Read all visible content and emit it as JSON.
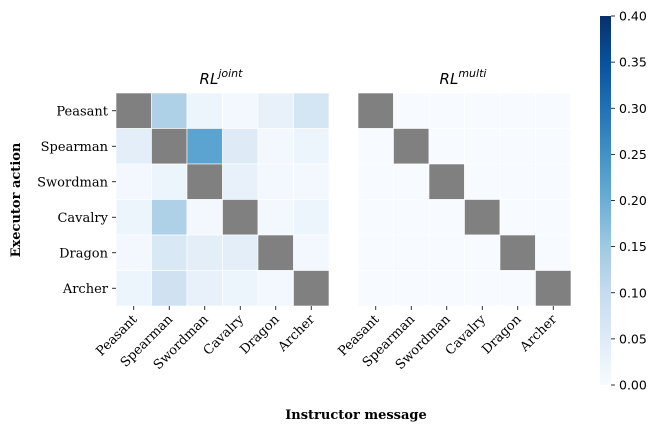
{
  "chart_data": {
    "type": "heatmap",
    "xlabel": "Instructor message",
    "ylabel": "Executor action",
    "categories": [
      "Peasant",
      "Spearman",
      "Swordman",
      "Cavalry",
      "Dragon",
      "Archer"
    ],
    "panels": [
      {
        "title_main": "RL",
        "title_sup": "joint",
        "diagonal_masked": true,
        "values": [
          [
            null,
            0.13,
            0.02,
            0.01,
            0.03,
            0.07
          ],
          [
            0.04,
            null,
            0.22,
            0.05,
            0.01,
            0.02
          ],
          [
            0.01,
            0.02,
            null,
            0.03,
            0.01,
            0.01
          ],
          [
            0.02,
            0.13,
            0.01,
            null,
            0.01,
            0.02
          ],
          [
            0.01,
            0.06,
            0.04,
            0.04,
            null,
            0.01
          ],
          [
            0.02,
            0.08,
            0.03,
            0.02,
            0.01,
            null
          ]
        ]
      },
      {
        "title_main": "RL",
        "title_sup": "multi",
        "diagonal_masked": true,
        "values": [
          [
            null,
            0.0,
            0.0,
            0.0,
            0.0,
            0.0
          ],
          [
            0.0,
            null,
            0.0,
            0.0,
            0.0,
            0.0
          ],
          [
            0.0,
            0.0,
            null,
            0.0,
            0.0,
            0.0
          ],
          [
            0.0,
            0.0,
            0.0,
            null,
            0.0,
            0.0
          ],
          [
            0.0,
            0.0,
            0.0,
            0.0,
            null,
            0.0
          ],
          [
            0.0,
            0.0,
            0.0,
            0.0,
            0.0,
            null
          ]
        ]
      }
    ],
    "colorbar": {
      "range": [
        0.0,
        0.4
      ],
      "ticks": [
        "0.00",
        "0.05",
        "0.10",
        "0.15",
        "0.20",
        "0.25",
        "0.30",
        "0.35",
        "0.40"
      ],
      "colormap": "Blues"
    },
    "colors": {
      "masked": "#808080",
      "grid": "#ffffff",
      "low": "#f7fbff",
      "high": "#08306b"
    }
  }
}
